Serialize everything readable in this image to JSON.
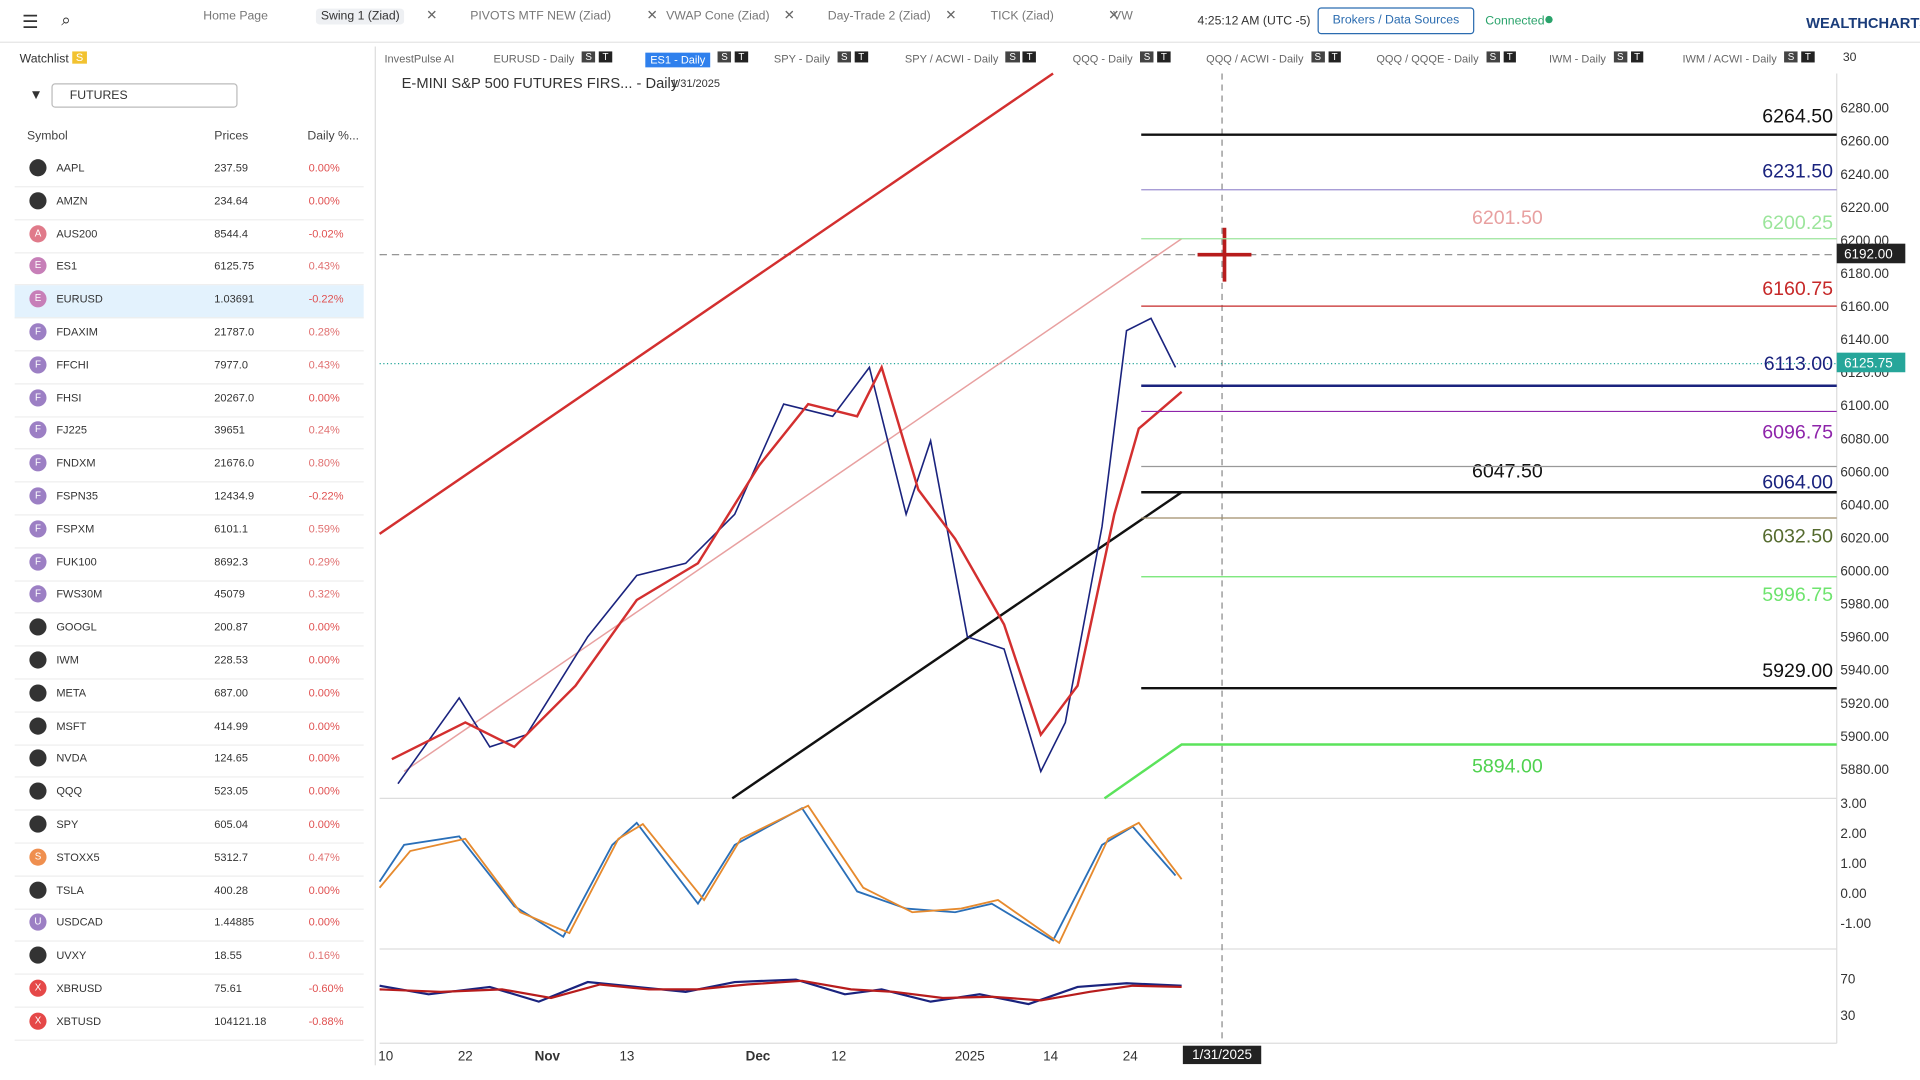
{
  "top": {
    "tabs": [
      "Home Page",
      "Swing 1 (Ziad)",
      "PIVOTS MTF NEW (Ziad)",
      "VWAP Cone (Ziad)",
      "Day-Trade 2 (Ziad)",
      "TICK (Ziad)",
      "VW"
    ],
    "time": "4:25:12 AM  (UTC -5)",
    "brokers": "Brokers / Data Sources",
    "status": "Connected",
    "brand": "WEALTHCHARTS"
  },
  "watchlist": {
    "title": "Watchlist",
    "badge": "S",
    "filter": "FUTURES",
    "columns": [
      "Symbol",
      "Prices",
      "Daily %..."
    ],
    "rows": [
      {
        "symbol": "AAPL",
        "price": "237.59",
        "change": "0.00%"
      },
      {
        "symbol": "AMZN",
        "price": "234.64",
        "change": "0.00%"
      },
      {
        "icon": "A",
        "symbol": "AUS200",
        "price": "8544.4",
        "change": "-0.02%"
      },
      {
        "icon": "E",
        "symbol": "ES1",
        "price": "6125.75",
        "change": "0.43%"
      },
      {
        "icon": "E",
        "symbol": "EURUSD",
        "price": "1.03691",
        "change": "-0.22%"
      },
      {
        "icon": "F",
        "symbol": "FDAXIM",
        "price": "21787.0",
        "change": "0.28%"
      },
      {
        "icon": "F",
        "symbol": "FFCHI",
        "price": "7977.0",
        "change": "0.43%"
      },
      {
        "icon": "F",
        "symbol": "FHSI",
        "price": "20267.0",
        "change": "0.00%"
      },
      {
        "icon": "F",
        "symbol": "FJ225",
        "price": "39651",
        "change": "0.24%"
      },
      {
        "icon": "F",
        "symbol": "FNDXM",
        "price": "21676.0",
        "change": "0.80%"
      },
      {
        "icon": "F",
        "symbol": "FSPN35",
        "price": "12434.9",
        "change": "-0.22%"
      },
      {
        "icon": "F",
        "symbol": "FSPXM",
        "price": "6101.1",
        "change": "0.59%"
      },
      {
        "icon": "F",
        "symbol": "FUK100",
        "price": "8692.3",
        "change": "0.29%"
      },
      {
        "icon": "F",
        "symbol": "FWS30M",
        "price": "45079",
        "change": "0.32%"
      },
      {
        "symbol": "GOOGL",
        "price": "200.87",
        "change": "0.00%"
      },
      {
        "symbol": "IWM",
        "price": "228.53",
        "change": "0.00%"
      },
      {
        "symbol": "META",
        "price": "687.00",
        "change": "0.00%"
      },
      {
        "symbol": "MSFT",
        "price": "414.99",
        "change": "0.00%"
      },
      {
        "symbol": "NVDA",
        "price": "124.65",
        "change": "0.00%"
      },
      {
        "symbol": "QQQ",
        "price": "523.05",
        "change": "0.00%"
      },
      {
        "symbol": "SPY",
        "price": "605.04",
        "change": "0.00%"
      },
      {
        "icon": "S",
        "symbol": "STOXX5",
        "price": "5312.7",
        "change": "0.47%"
      },
      {
        "symbol": "TSLA",
        "price": "400.28",
        "change": "0.00%"
      },
      {
        "icon": "U",
        "symbol": "USDCAD",
        "price": "1.44885",
        "change": "0.00%"
      },
      {
        "symbol": "UVXY",
        "price": "18.55",
        "change": "0.16%"
      },
      {
        "icon": "X",
        "symbol": "XBRUSD",
        "price": "75.61",
        "change": "-0.60%"
      },
      {
        "icon": "X",
        "symbol": "XBTUSD",
        "price": "104121.18",
        "change": "-0.88%"
      }
    ]
  },
  "chart": {
    "tabs": [
      {
        "label": "InvestPulse AI"
      },
      {
        "label": "EURUSD - Daily",
        "badges": [
          "S",
          "T"
        ]
      },
      {
        "label": "ES1 - Daily",
        "badges": [
          "S",
          "T"
        ]
      },
      {
        "label": "SPY - Daily",
        "badges": [
          "S",
          "T"
        ]
      },
      {
        "label": "SPY / ACWI - Daily",
        "badges": [
          "S",
          "T"
        ]
      },
      {
        "label": "QQQ - Daily",
        "badges": [
          "S",
          "T"
        ]
      },
      {
        "label": "QQQ / ACWI - Daily",
        "badges": [
          "S",
          "T"
        ]
      },
      {
        "label": "QQQ / QQQE - Daily",
        "badges": [
          "S",
          "T"
        ]
      },
      {
        "label": "IWM - Daily",
        "badges": [
          "S",
          "T"
        ]
      },
      {
        "label": "IWM / ACWI - Daily",
        "badges": [
          "S",
          "T"
        ]
      }
    ],
    "count": "30",
    "title": "E-MINI S&P 500 FUTURES FIRS... - Daily",
    "date": "1/31/2025",
    "price_ticks": [
      "6280.00",
      "6260.00",
      "6240.00",
      "6220.00",
      "6200.00",
      "6180.00",
      "6160.00",
      "6140.00",
      "6120.00",
      "6100.00",
      "6080.00",
      "6060.00",
      "6040.00",
      "6020.00",
      "6000.00",
      "5980.00",
      "5960.00",
      "5940.00",
      "5920.00",
      "5900.00",
      "5880.00"
    ],
    "crosshair_price": "6192.00",
    "last_price": "6125.75",
    "levels": [
      "6264.50",
      "6231.50",
      "6201.50",
      "6200.25",
      "6160.75",
      "6113.00",
      "6096.75",
      "6047.50",
      "6064.00",
      "6032.50",
      "5996.75",
      "5929.00",
      "5894.00"
    ],
    "osc1_ticks": [
      "3.00",
      "2.00",
      "1.00",
      "0.00",
      "-1.00"
    ],
    "osc2_ticks": [
      "70",
      "30"
    ],
    "dates": [
      "10",
      "22",
      "Nov",
      "13",
      "Dec",
      "12",
      "2025",
      "14",
      "24"
    ],
    "crosshair_date": "1/31/2025"
  }
}
